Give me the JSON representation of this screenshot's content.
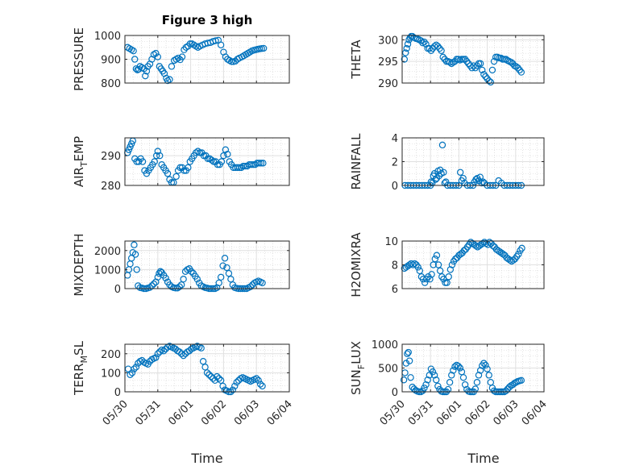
{
  "figure": {
    "title": "Figure 3 high",
    "marker_color": "#0072bd",
    "grid": true
  },
  "x_axis": {
    "label": "Time",
    "ticks": [
      "05/30",
      "05/31",
      "06/01",
      "06/02",
      "06/03",
      "06/04"
    ],
    "range_days": [
      0,
      5
    ]
  },
  "chart_data": [
    {
      "type": "scatter",
      "name": "pressure",
      "ylabel": "PRESSURE",
      "ylim": [
        800,
        1000
      ],
      "yticks": [
        "800",
        "900",
        "1000"
      ],
      "x": [
        0.08,
        0.14,
        0.2,
        0.26,
        0.3,
        0.34,
        0.38,
        0.42,
        0.46,
        0.52,
        0.58,
        0.62,
        0.66,
        0.7,
        0.76,
        0.82,
        0.88,
        0.94,
        1.0,
        1.05,
        1.1,
        1.15,
        1.2,
        1.26,
        1.3,
        1.36,
        1.42,
        1.5,
        1.56,
        1.62,
        1.68,
        1.74,
        1.8,
        1.86,
        1.92,
        1.98,
        2.04,
        2.1,
        2.16,
        2.22,
        2.28,
        2.36,
        2.44,
        2.52,
        2.6,
        2.68,
        2.76,
        2.84,
        2.92,
        3.0,
        3.06,
        3.12,
        3.18,
        3.24,
        3.3,
        3.36,
        3.42,
        3.48,
        3.56,
        3.62,
        3.68,
        3.74,
        3.8,
        3.86,
        3.92,
        3.98,
        4.04,
        4.1,
        4.16,
        4.22
      ],
      "y": [
        950,
        945,
        940,
        935,
        900,
        860,
        855,
        858,
        870,
        865,
        860,
        830,
        850,
        870,
        880,
        900,
        920,
        925,
        910,
        870,
        860,
        850,
        840,
        820,
        810,
        815,
        870,
        895,
        900,
        905,
        898,
        910,
        940,
        950,
        955,
        965,
        965,
        960,
        955,
        950,
        955,
        960,
        965,
        968,
        970,
        975,
        978,
        980,
        960,
        930,
        910,
        900,
        895,
        890,
        890,
        892,
        900,
        905,
        910,
        915,
        920,
        925,
        930,
        935,
        938,
        940,
        942,
        944,
        945,
        946
      ]
    },
    {
      "type": "scatter",
      "name": "theta",
      "ylabel": "THETA",
      "ylim": [
        290,
        301
      ],
      "yticks": [
        "290",
        "295",
        "300"
      ],
      "x": [
        0.08,
        0.12,
        0.16,
        0.2,
        0.24,
        0.28,
        0.32,
        0.36,
        0.42,
        0.48,
        0.54,
        0.6,
        0.66,
        0.72,
        0.78,
        0.84,
        0.9,
        0.96,
        1.02,
        1.08,
        1.14,
        1.2,
        1.26,
        1.32,
        1.38,
        1.44,
        1.5,
        1.56,
        1.62,
        1.68,
        1.74,
        1.8,
        1.86,
        1.92,
        1.98,
        2.04,
        2.1,
        2.16,
        2.22,
        2.28,
        2.34,
        2.4,
        2.46,
        2.52,
        2.58,
        2.64,
        2.7,
        2.76,
        2.82,
        2.88,
        2.94,
        3.0,
        3.06,
        3.12,
        3.18,
        3.24,
        3.3,
        3.36,
        3.42,
        3.48,
        3.54,
        3.6,
        3.66,
        3.72,
        3.78,
        3.84,
        3.9,
        3.96,
        4.02,
        4.08,
        4.14,
        4.2
      ],
      "y": [
        295.5,
        297,
        298,
        299,
        300,
        300.5,
        300.8,
        300.8,
        300.5,
        300.3,
        300.2,
        300.0,
        299.8,
        299.3,
        299.5,
        299,
        298,
        298,
        297.5,
        298,
        298.5,
        298.8,
        298.5,
        298,
        297.5,
        296,
        295.5,
        295,
        295,
        294.8,
        294.5,
        294.8,
        295,
        295.5,
        295.5,
        295.3,
        295.5,
        295.5,
        295.5,
        295,
        294.5,
        294,
        293.5,
        294,
        293.5,
        294,
        294.5,
        294.5,
        293,
        292,
        291.5,
        291,
        290.5,
        290.2,
        293,
        295,
        296,
        296,
        295.8,
        295.8,
        295.5,
        295.5,
        295.5,
        295.2,
        295,
        294.8,
        294.5,
        294,
        293.8,
        293.5,
        293,
        292.5
      ]
    },
    {
      "type": "scatter",
      "name": "air temp",
      "ylabel": "AIR_TEMP",
      "ylim": [
        280,
        296
      ],
      "yticks": [
        "280",
        "290"
      ],
      "x": [
        0.08,
        0.12,
        0.16,
        0.2,
        0.24,
        0.3,
        0.36,
        0.42,
        0.48,
        0.54,
        0.6,
        0.66,
        0.72,
        0.78,
        0.84,
        0.9,
        0.96,
        1.0,
        1.06,
        1.12,
        1.18,
        1.24,
        1.3,
        1.36,
        1.42,
        1.48,
        1.56,
        1.62,
        1.68,
        1.74,
        1.8,
        1.86,
        1.92,
        1.98,
        2.04,
        2.1,
        2.16,
        2.22,
        2.28,
        2.34,
        2.4,
        2.46,
        2.52,
        2.58,
        2.64,
        2.7,
        2.76,
        2.82,
        2.88,
        2.94,
        3.0,
        3.06,
        3.12,
        3.18,
        3.24,
        3.3,
        3.36,
        3.42,
        3.48,
        3.54,
        3.6,
        3.66,
        3.72,
        3.78,
        3.84,
        3.9,
        3.96,
        4.02,
        4.08,
        4.14,
        4.2
      ],
      "y": [
        291,
        292,
        293,
        294,
        295,
        289,
        288,
        288,
        289,
        288,
        285,
        284,
        285,
        286,
        287,
        288,
        290,
        291.5,
        290,
        287,
        286,
        285,
        284,
        282,
        281,
        281,
        283,
        285,
        286,
        286,
        285,
        285,
        286,
        288,
        289,
        290,
        291,
        291.5,
        291,
        291,
        290,
        290,
        289,
        289,
        288.5,
        288,
        288,
        287,
        287,
        288,
        290,
        292,
        290.5,
        288,
        287,
        286,
        286,
        286,
        286,
        286,
        286.5,
        286.5,
        286.5,
        287,
        287,
        287,
        287,
        287.5,
        287.5,
        287.5,
        287.5
      ]
    },
    {
      "type": "scatter",
      "name": "rainfall",
      "ylabel": "RAINFALL",
      "ylim": [
        0,
        4
      ],
      "yticks": [
        "0",
        "2",
        "4"
      ],
      "x": [
        0.1,
        0.2,
        0.3,
        0.4,
        0.5,
        0.6,
        0.7,
        0.8,
        0.9,
        1.0,
        1.02,
        1.06,
        1.1,
        1.14,
        1.18,
        1.22,
        1.26,
        1.3,
        1.34,
        1.38,
        1.42,
        1.46,
        1.5,
        1.54,
        1.6,
        1.7,
        1.8,
        1.9,
        2.0,
        2.05,
        2.1,
        2.15,
        2.2,
        2.3,
        2.4,
        2.5,
        2.55,
        2.6,
        2.65,
        2.7,
        2.75,
        2.8,
        2.85,
        2.9,
        3.0,
        3.1,
        3.2,
        3.3,
        3.4,
        3.5,
        3.6,
        3.7,
        3.8,
        3.9,
        4.0,
        4.1,
        4.2
      ],
      "y": [
        0,
        0,
        0,
        0,
        0,
        0,
        0,
        0,
        0,
        0,
        0.3,
        0.2,
        0.8,
        1.0,
        0.5,
        0.6,
        1.2,
        0.8,
        1.3,
        1.0,
        3.4,
        1.1,
        0.2,
        0.3,
        0,
        0,
        0,
        0,
        0,
        1.1,
        0.4,
        0.6,
        0.2,
        0,
        0,
        0,
        0.3,
        0.5,
        0.6,
        0.4,
        0.7,
        0.2,
        0.3,
        0.2,
        0,
        0,
        0,
        0,
        0.4,
        0.2,
        0,
        0,
        0,
        0,
        0,
        0,
        0
      ]
    },
    {
      "type": "scatter",
      "name": "mixdepth",
      "ylabel": "MIXDEPTH",
      "ylim": [
        0,
        2500
      ],
      "yticks": [
        "0",
        "1000",
        "2000"
      ],
      "x": [
        0.08,
        0.12,
        0.16,
        0.2,
        0.24,
        0.28,
        0.32,
        0.36,
        0.4,
        0.46,
        0.52,
        0.58,
        0.64,
        0.7,
        0.76,
        0.82,
        0.88,
        0.94,
        1.0,
        1.04,
        1.08,
        1.12,
        1.18,
        1.24,
        1.3,
        1.36,
        1.42,
        1.48,
        1.54,
        1.6,
        1.66,
        1.72,
        1.78,
        1.84,
        1.9,
        1.96,
        2.02,
        2.08,
        2.14,
        2.2,
        2.26,
        2.32,
        2.38,
        2.44,
        2.5,
        2.56,
        2.62,
        2.68,
        2.74,
        2.8,
        2.86,
        2.92,
        2.98,
        3.04,
        3.1,
        3.16,
        3.22,
        3.28,
        3.34,
        3.4,
        3.46,
        3.52,
        3.58,
        3.64,
        3.7,
        3.76,
        3.82,
        3.88,
        3.94,
        4.0,
        4.06,
        4.12,
        4.18
      ],
      "y": [
        700,
        1000,
        1300,
        1600,
        1900,
        2300,
        1800,
        1000,
        150,
        50,
        30,
        0,
        0,
        30,
        60,
        150,
        250,
        350,
        600,
        800,
        900,
        850,
        700,
        550,
        350,
        200,
        100,
        50,
        30,
        30,
        100,
        200,
        500,
        900,
        1000,
        1050,
        900,
        800,
        650,
        500,
        300,
        150,
        100,
        50,
        30,
        0,
        0,
        0,
        0,
        50,
        300,
        600,
        1200,
        1600,
        1100,
        800,
        500,
        200,
        50,
        20,
        0,
        0,
        0,
        0,
        0,
        50,
        100,
        200,
        300,
        350,
        400,
        350,
        300
      ]
    },
    {
      "type": "scatter",
      "name": "h2omixra",
      "ylabel": "H2OMIXRA",
      "ylim": [
        6,
        10
      ],
      "yticks": [
        "6",
        "8",
        "10"
      ],
      "x": [
        0.08,
        0.14,
        0.2,
        0.26,
        0.32,
        0.38,
        0.44,
        0.5,
        0.56,
        0.62,
        0.68,
        0.74,
        0.8,
        0.86,
        0.92,
        0.98,
        1.04,
        1.1,
        1.16,
        1.22,
        1.28,
        1.34,
        1.4,
        1.46,
        1.52,
        1.58,
        1.64,
        1.7,
        1.76,
        1.82,
        1.88,
        1.94,
        2.0,
        2.06,
        2.12,
        2.18,
        2.24,
        2.3,
        2.36,
        2.42,
        2.48,
        2.54,
        2.6,
        2.66,
        2.72,
        2.78,
        2.84,
        2.9,
        2.96,
        3.02,
        3.08,
        3.14,
        3.2,
        3.26,
        3.32,
        3.38,
        3.44,
        3.5,
        3.56,
        3.62,
        3.68,
        3.74,
        3.8,
        3.86,
        3.92,
        3.98,
        4.04,
        4.1,
        4.16,
        4.22
      ],
      "y": [
        7.7,
        7.8,
        7.9,
        8.0,
        8.1,
        8.0,
        8.1,
        8.0,
        7.8,
        7.5,
        7.0,
        6.8,
        6.5,
        6.8,
        7.0,
        6.8,
        7.2,
        8.0,
        8.5,
        8.8,
        8.0,
        7.5,
        7.0,
        6.8,
        6.5,
        6.5,
        7.0,
        7.6,
        8.0,
        8.3,
        8.5,
        8.6,
        8.8,
        8.9,
        9.0,
        9.2,
        9.3,
        9.5,
        9.7,
        9.9,
        9.8,
        9.7,
        9.6,
        9.5,
        9.6,
        9.7,
        9.8,
        9.9,
        9.8,
        9.7,
        9.9,
        9.8,
        9.6,
        9.5,
        9.3,
        9.2,
        9.1,
        9.0,
        8.9,
        8.8,
        8.6,
        8.5,
        8.4,
        8.3,
        8.4,
        8.5,
        8.7,
        8.9,
        9.2,
        9.4
      ]
    },
    {
      "type": "scatter",
      "name": "terrain msl",
      "ylabel": "TERR_MSL",
      "ylim": [
        0,
        250
      ],
      "yticks": [
        "0",
        "100",
        "200"
      ],
      "x": [
        0.1,
        0.16,
        0.22,
        0.28,
        0.34,
        0.4,
        0.46,
        0.52,
        0.58,
        0.64,
        0.7,
        0.76,
        0.82,
        0.88,
        0.94,
        1.0,
        1.06,
        1.12,
        1.18,
        1.24,
        1.3,
        1.36,
        1.42,
        1.48,
        1.54,
        1.6,
        1.66,
        1.72,
        1.78,
        1.84,
        1.9,
        1.96,
        2.02,
        2.08,
        2.14,
        2.2,
        2.26,
        2.32,
        2.38,
        2.44,
        2.5,
        2.56,
        2.62,
        2.68,
        2.74,
        2.8,
        2.86,
        2.92,
        2.98,
        3.04,
        3.1,
        3.16,
        3.22,
        3.28,
        3.34,
        3.4,
        3.46,
        3.52,
        3.58,
        3.64,
        3.7,
        3.76,
        3.82,
        3.88,
        3.94,
        4.0,
        4.06,
        4.12,
        4.18
      ],
      "y": [
        120,
        90,
        100,
        120,
        130,
        150,
        160,
        165,
        155,
        150,
        145,
        160,
        170,
        175,
        180,
        200,
        210,
        220,
        215,
        225,
        235,
        240,
        235,
        230,
        225,
        215,
        210,
        200,
        190,
        200,
        210,
        215,
        225,
        230,
        235,
        240,
        235,
        230,
        160,
        130,
        100,
        90,
        80,
        70,
        60,
        80,
        70,
        60,
        30,
        10,
        5,
        0,
        0,
        10,
        30,
        50,
        60,
        70,
        75,
        70,
        65,
        60,
        55,
        60,
        65,
        70,
        60,
        40,
        30
      ]
    },
    {
      "type": "scatter",
      "name": "sun flux",
      "ylabel": "SUN_FLUX",
      "ylim": [
        0,
        1000
      ],
      "yticks": [
        "0",
        "500",
        "1000"
      ],
      "x": [
        0.06,
        0.1,
        0.14,
        0.18,
        0.22,
        0.26,
        0.3,
        0.36,
        0.42,
        0.48,
        0.54,
        0.6,
        0.66,
        0.72,
        0.78,
        0.84,
        0.9,
        0.96,
        1.02,
        1.08,
        1.14,
        1.2,
        1.26,
        1.32,
        1.38,
        1.44,
        1.5,
        1.56,
        1.62,
        1.68,
        1.74,
        1.8,
        1.86,
        1.92,
        1.98,
        2.04,
        2.1,
        2.16,
        2.22,
        2.28,
        2.34,
        2.4,
        2.46,
        2.52,
        2.58,
        2.64,
        2.7,
        2.76,
        2.82,
        2.88,
        2.94,
        3.0,
        3.06,
        3.12,
        3.18,
        3.24,
        3.3,
        3.36,
        3.42,
        3.48,
        3.54,
        3.6,
        3.66,
        3.72,
        3.78,
        3.84,
        3.9,
        3.96,
        4.02,
        4.08,
        4.14,
        4.2
      ],
      "y": [
        250,
        400,
        600,
        800,
        830,
        650,
        300,
        100,
        60,
        30,
        10,
        0,
        0,
        20,
        80,
        150,
        250,
        350,
        480,
        420,
        350,
        250,
        120,
        50,
        10,
        0,
        0,
        0,
        50,
        200,
        350,
        450,
        530,
        560,
        540,
        500,
        420,
        300,
        150,
        50,
        10,
        0,
        0,
        0,
        60,
        200,
        350,
        450,
        550,
        600,
        560,
        480,
        350,
        200,
        80,
        20,
        0,
        0,
        0,
        0,
        0,
        0,
        20,
        60,
        100,
        130,
        150,
        180,
        200,
        220,
        230,
        240
      ]
    }
  ]
}
